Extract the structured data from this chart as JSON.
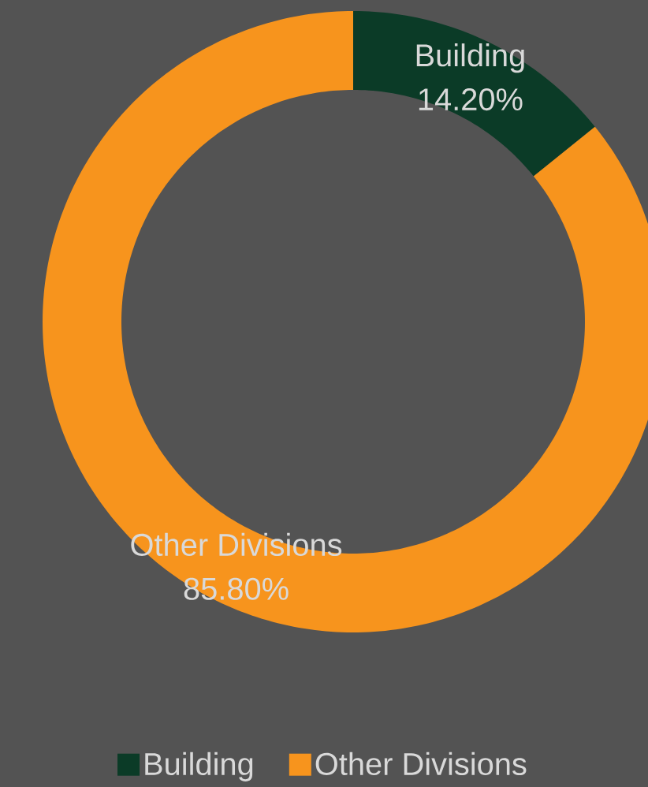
{
  "chart_data": {
    "type": "donut",
    "categories": [
      "Building",
      "Other Divisions"
    ],
    "values": [
      14.2,
      85.8
    ],
    "value_labels": [
      "14.20%",
      "85.80%"
    ],
    "colors": [
      "#0b3b27",
      "#f7941d"
    ],
    "legend": "bottom"
  }
}
